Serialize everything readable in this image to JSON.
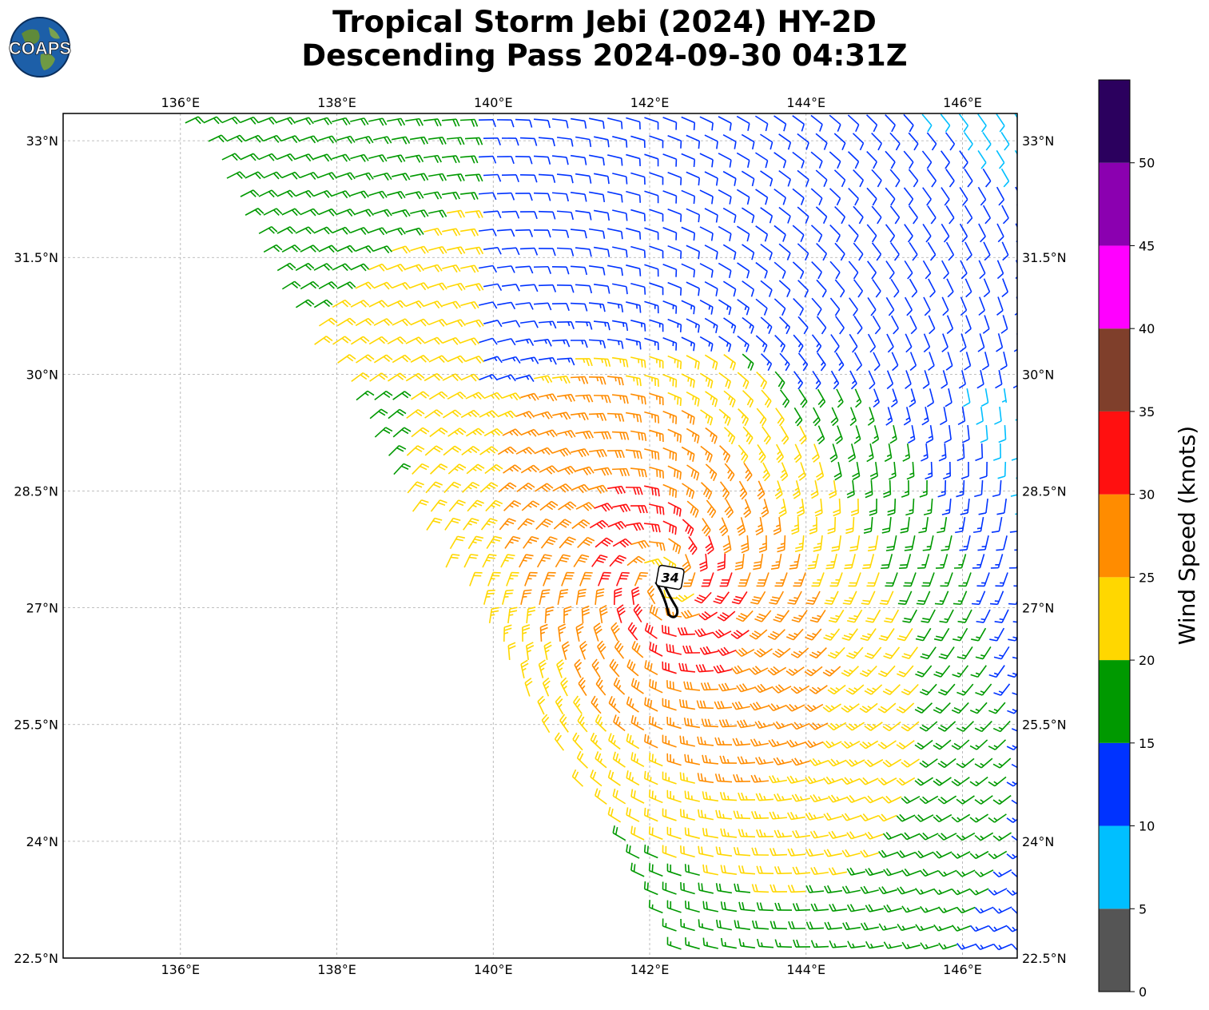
{
  "title": {
    "line1": "Tropical Storm Jebi (2024) HY-2D",
    "line2": "Descending Pass 2024-09-30 04:31Z"
  },
  "logo": {
    "text": "COAPS",
    "icon": "globe-logo"
  },
  "map": {
    "lon_range": [
      134.5,
      146.7
    ],
    "lat_range": [
      22.5,
      33.35
    ],
    "lon_ticks": [
      "136°E",
      "138°E",
      "140°E",
      "142°E",
      "144°E",
      "146°E"
    ],
    "lat_ticks": [
      "22.5°N",
      "24°N",
      "25.5°N",
      "27°N",
      "28.5°N",
      "30°N",
      "31.5°N",
      "33°N"
    ],
    "grid": true,
    "storm_center": {
      "lon": 142.2,
      "lat": 27.35
    },
    "contour_label": "34",
    "max_wind_knots": 34
  },
  "colorbar": {
    "label": "Wind Speed (knots)",
    "ticks": [
      "0",
      "5",
      "10",
      "15",
      "20",
      "25",
      "30",
      "35",
      "40",
      "45",
      "50"
    ],
    "bins": [
      {
        "range": [
          0,
          5
        ],
        "color": "#555555"
      },
      {
        "range": [
          5,
          10
        ],
        "color": "#00bfff"
      },
      {
        "range": [
          10,
          15
        ],
        "color": "#0033ff"
      },
      {
        "range": [
          15,
          20
        ],
        "color": "#009900"
      },
      {
        "range": [
          20,
          25
        ],
        "color": "#ffd700"
      },
      {
        "range": [
          25,
          30
        ],
        "color": "#ff8c00"
      },
      {
        "range": [
          30,
          35
        ],
        "color": "#ff1010"
      },
      {
        "range": [
          35,
          40
        ],
        "color": "#7f3f2b"
      },
      {
        "range": [
          40,
          45
        ],
        "color": "#ff00ff"
      },
      {
        "range": [
          45,
          50
        ],
        "color": "#8b00b0"
      },
      {
        "range": [
          50,
          55
        ],
        "color": "#2b005e"
      }
    ]
  }
}
